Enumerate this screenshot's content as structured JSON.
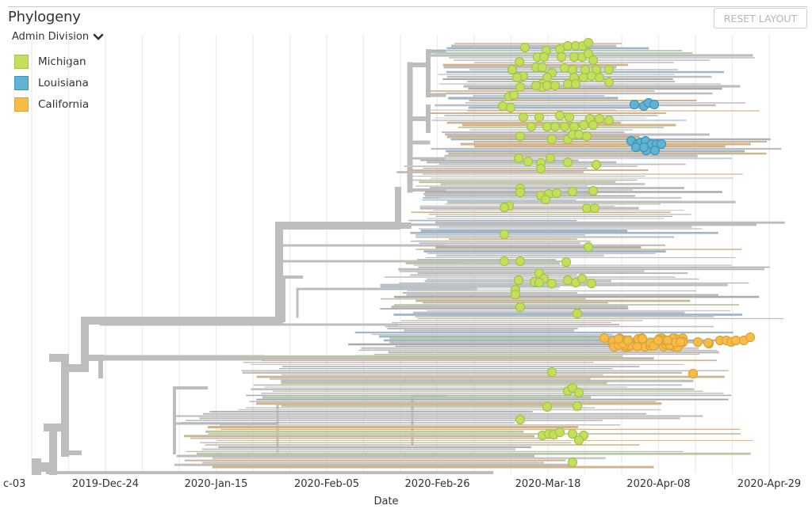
{
  "panel": {
    "title": "Phylogeny",
    "reset_label": "RESET LAYOUT",
    "color_by_label": "Admin Division",
    "color_by_icon": "chevron-down-icon"
  },
  "legend": [
    {
      "label": "Michigan",
      "color": "#c4e05a",
      "stroke": "#a3c24a"
    },
    {
      "label": "Louisiana",
      "color": "#5fb3d4",
      "stroke": "#3f93b5"
    },
    {
      "label": "California",
      "color": "#f7bb46",
      "stroke": "#dba335"
    }
  ],
  "axis": {
    "label": "Date",
    "ticks": [
      "c-03",
      "2019-Dec-24",
      "2020-Jan-15",
      "2020-Feb-05",
      "2020-Feb-26",
      "2020-Mar-18",
      "2020-Apr-08",
      "2020-Apr-29"
    ],
    "grid_interval_days": 7,
    "tick_interval_days": 21
  },
  "colors": {
    "branch": "#bdbdbd",
    "grid": "#ececec",
    "tint_tan": "#d2b48c",
    "tint_blue": "#9fb6c8",
    "tint_green": "#b9c8a0"
  },
  "tips": {
    "Michigan": 118,
    "Louisiana": 16,
    "California": 62
  }
}
